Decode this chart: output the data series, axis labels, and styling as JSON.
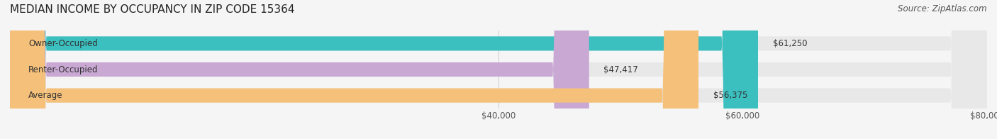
{
  "title": "MEDIAN INCOME BY OCCUPANCY IN ZIP CODE 15364",
  "source": "Source: ZipAtlas.com",
  "categories": [
    "Owner-Occupied",
    "Renter-Occupied",
    "Average"
  ],
  "values": [
    61250,
    47417,
    56375
  ],
  "labels": [
    "$61,250",
    "$47,417",
    "$56,375"
  ],
  "bar_colors": [
    "#3bbfbf",
    "#c9a8d4",
    "#f5c07a"
  ],
  "bar_bg_colors": [
    "#f0f0f0",
    "#f0f0f0",
    "#f0f0f0"
  ],
  "xlim": [
    0,
    80000
  ],
  "xticks": [
    40000,
    60000,
    80000
  ],
  "xticklabels": [
    "$40,000",
    "$60,000",
    "$80,000"
  ],
  "title_fontsize": 11,
  "label_fontsize": 8.5,
  "tick_fontsize": 8.5,
  "source_fontsize": 8.5,
  "background_color": "#f5f5f5"
}
